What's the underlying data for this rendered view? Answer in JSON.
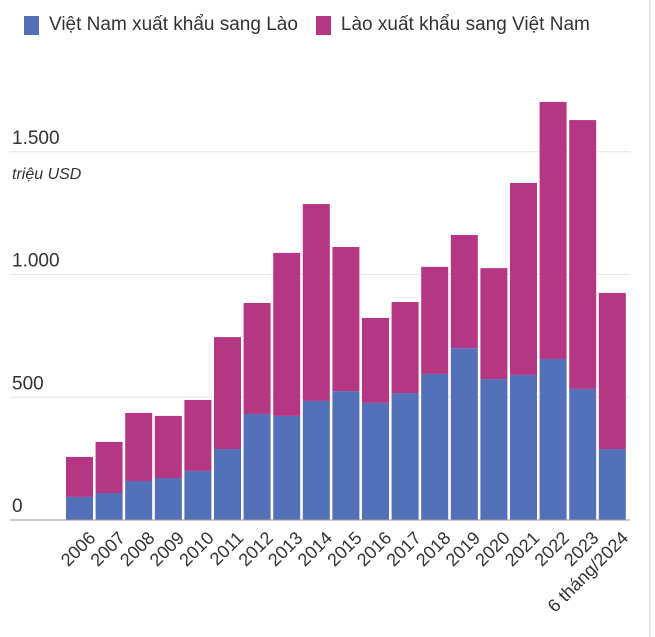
{
  "chart_data": {
    "type": "bar",
    "stacked": true,
    "ylabel": "triệu USD",
    "ylim": [
      0,
      1750
    ],
    "yticks": [
      0,
      500,
      1000,
      1500
    ],
    "ytick_labels": [
      "0",
      "500",
      "1.000",
      "1.500"
    ],
    "grid": true,
    "legend_position": "top",
    "categories": [
      "2006",
      "2007",
      "2008",
      "2009",
      "2010",
      "2011",
      "2012",
      "2013",
      "2014",
      "2015",
      "2016",
      "2017",
      "2018",
      "2019",
      "2020",
      "2021",
      "2022",
      "2023",
      "6 tháng/2024"
    ],
    "series": [
      {
        "name": "Việt Nam xuất khẩu sang Lào",
        "color": "#5470b8",
        "values": [
          94,
          110,
          159,
          171,
          200,
          289,
          432,
          424,
          485,
          525,
          477,
          517,
          595,
          700,
          574,
          591,
          656,
          534,
          289
        ]
      },
      {
        "name": "Lào xuất khẩu sang Việt Nam",
        "color": "#b53682",
        "values": [
          163,
          208,
          277,
          253,
          289,
          456,
          452,
          664,
          802,
          587,
          346,
          371,
          436,
          461,
          452,
          782,
          1047,
          1095,
          636
        ]
      }
    ]
  }
}
